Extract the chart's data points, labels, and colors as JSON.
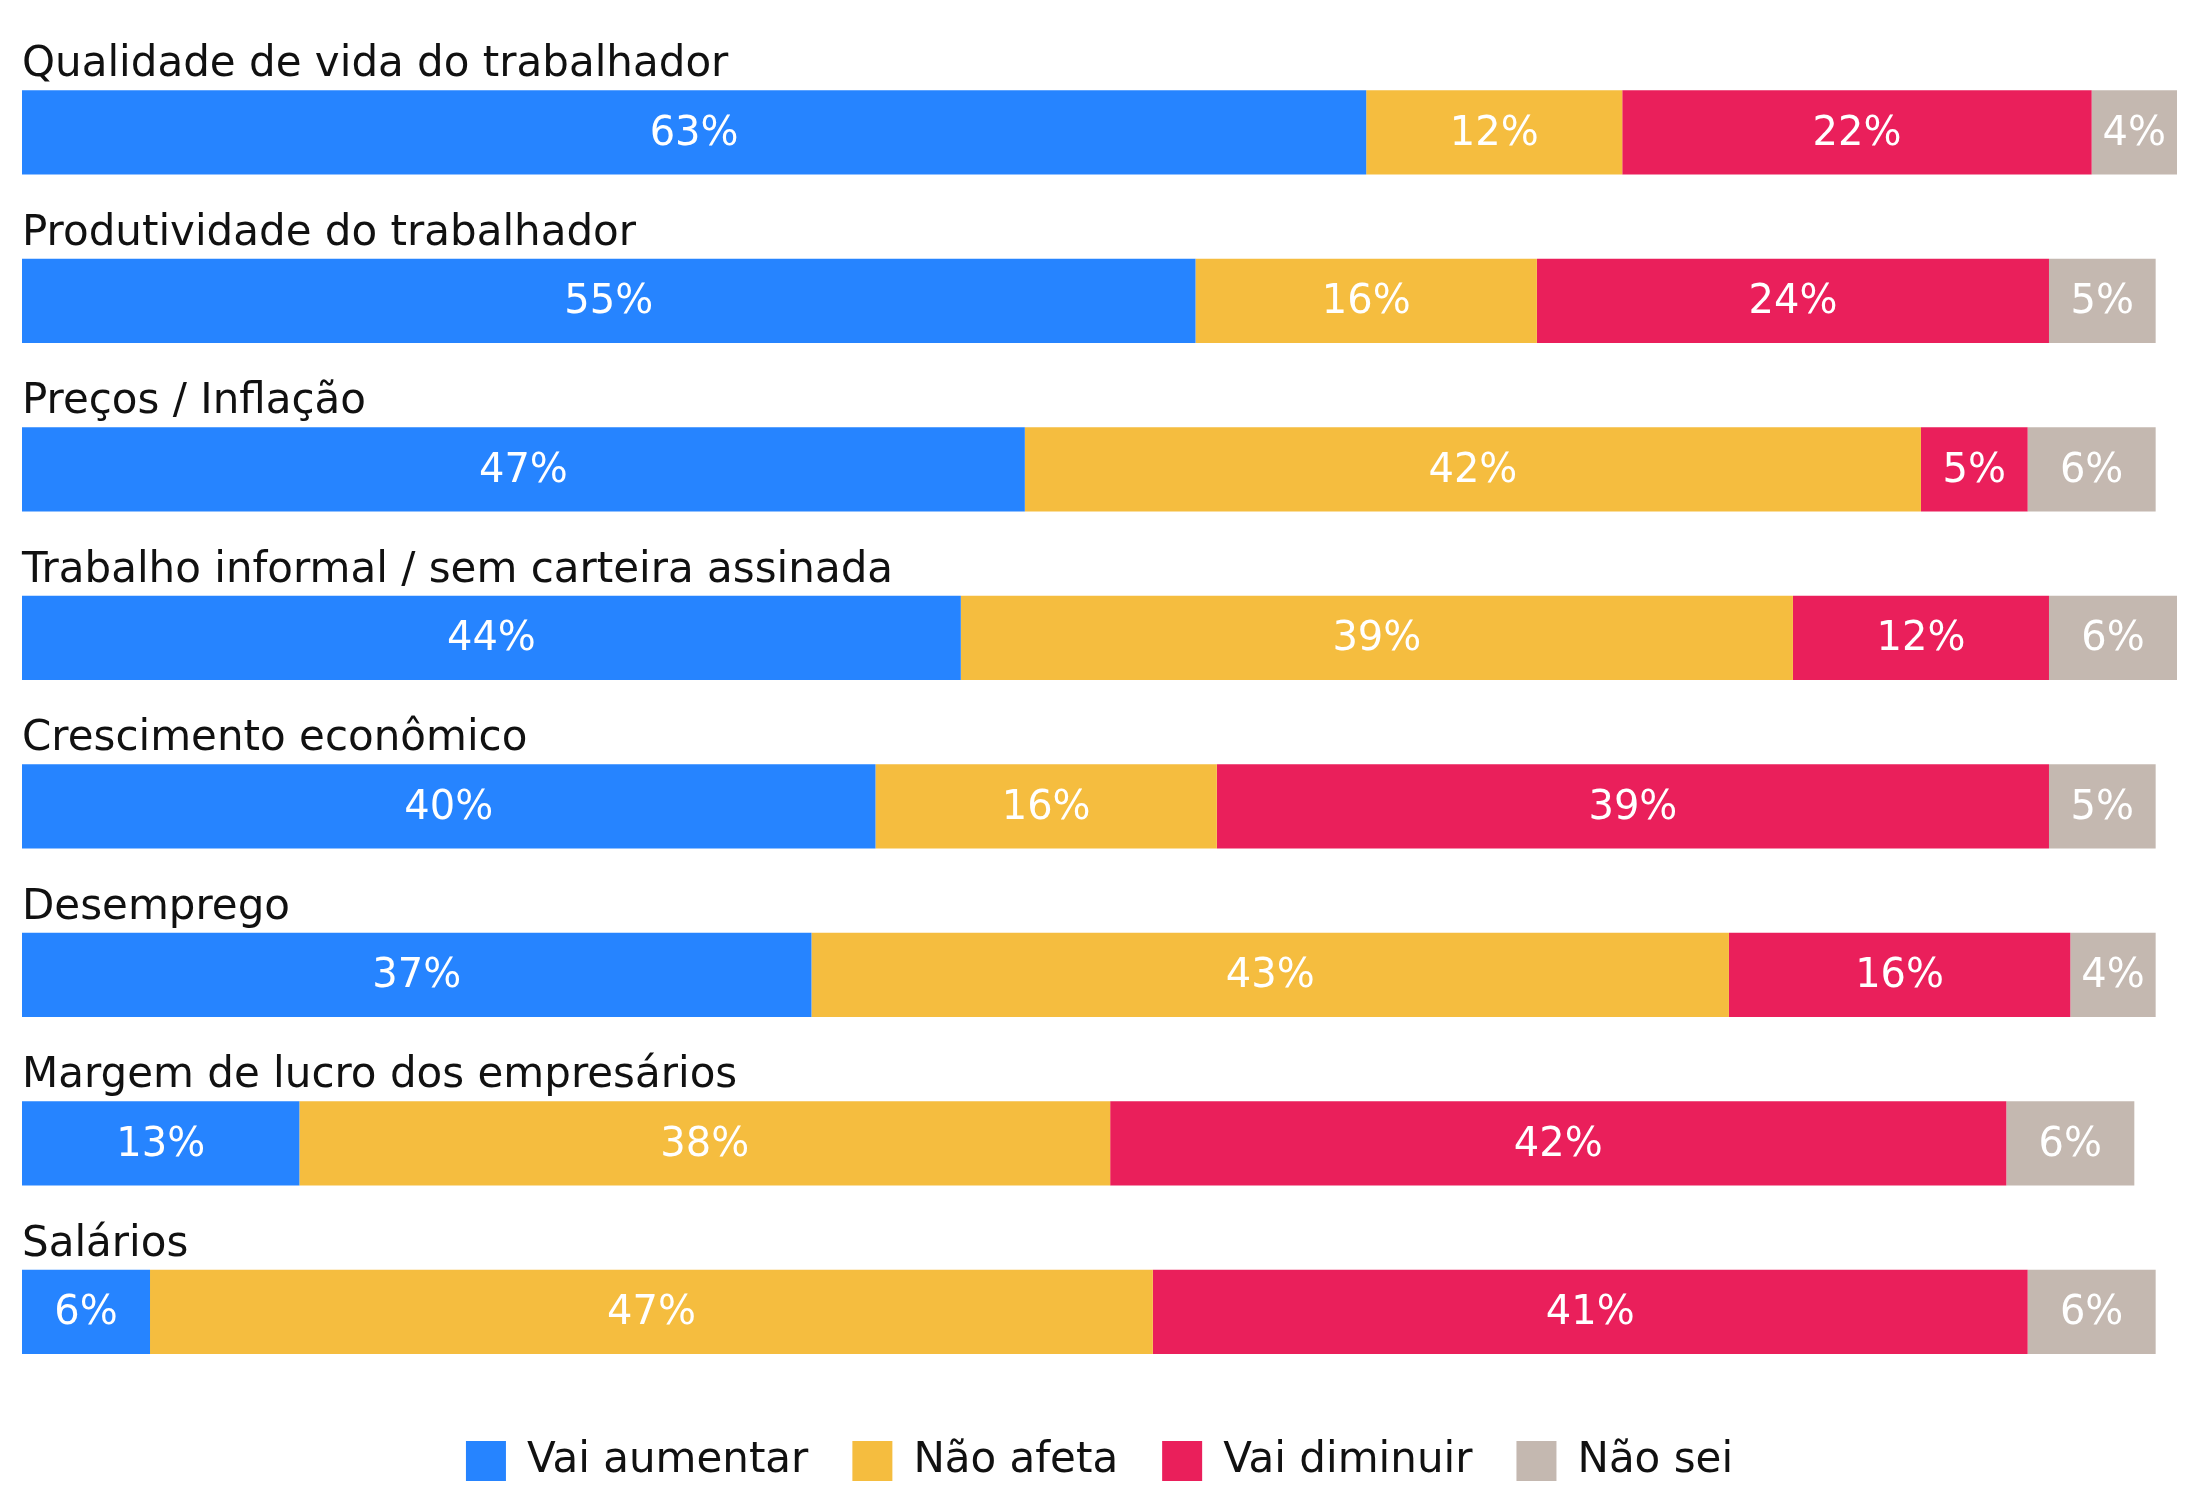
{
  "chart_data": {
    "type": "bar",
    "orientation": "horizontal",
    "stacked": true,
    "categories": [
      "Qualidade de vida do trabalhador",
      "Produtividade do trabalhador",
      "Preços / Inflação",
      "Trabalho informal / sem carteira assinada",
      "Crescimento econômico",
      "Desemprego",
      "Margem de lucro dos empresários",
      "Salários"
    ],
    "series": [
      {
        "name": "Vai aumentar",
        "color": "#2684ff",
        "values": [
          63,
          55,
          47,
          44,
          40,
          37,
          13,
          6
        ],
        "value_labels": [
          "63%",
          "55%",
          "47%",
          "44%",
          "40%",
          "37%",
          "13%",
          "6%"
        ]
      },
      {
        "name": "Não afeta",
        "color": "#f5bd3f",
        "values": [
          12,
          16,
          42,
          39,
          16,
          43,
          38,
          47
        ],
        "value_labels": [
          "12%",
          "16%",
          "42%",
          "39%",
          "16%",
          "43%",
          "38%",
          "47%"
        ]
      },
      {
        "name": "Vai diminuir",
        "color": "#ea1f5b",
        "values": [
          22,
          24,
          5,
          12,
          39,
          16,
          42,
          41
        ],
        "value_labels": [
          "22%",
          "24%",
          "5%",
          "12%",
          "39%",
          "16%",
          "42%",
          "41%"
        ]
      },
      {
        "name": "Não sei",
        "color": "#c4b8b0",
        "values": [
          4,
          5,
          6,
          6,
          5,
          4,
          6,
          6
        ],
        "value_labels": [
          "4%",
          "5%",
          "6%",
          "6%",
          "5%",
          "4%",
          "6%",
          "6%"
        ]
      }
    ],
    "xlim": [
      0,
      101
    ],
    "tick_labels": "y",
    "legend": "bottom"
  }
}
